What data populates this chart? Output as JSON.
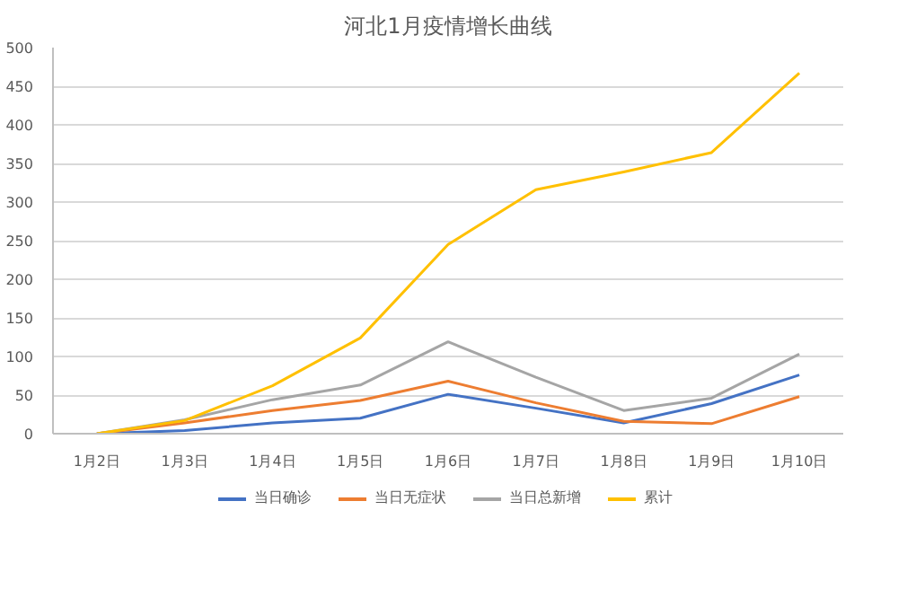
{
  "chart_data": {
    "type": "line",
    "title": "河北1月疫情增长曲线",
    "categories": [
      "1月2日",
      "1月3日",
      "1月4日",
      "1月5日",
      "1月6日",
      "1月7日",
      "1月8日",
      "1月9日",
      "1月10日"
    ],
    "series": [
      {
        "name": "当日确诊",
        "color": "#4472c4",
        "values": [
          0,
          4,
          14,
          20,
          51,
          33,
          14,
          39,
          76
        ]
      },
      {
        "name": "当日无症状",
        "color": "#ed7d31",
        "values": [
          0,
          14,
          30,
          43,
          68,
          40,
          16,
          13,
          48
        ]
      },
      {
        "name": "当日总新增",
        "color": "#a5a5a5",
        "values": [
          0,
          18,
          44,
          63,
          119,
          73,
          30,
          46,
          103
        ]
      },
      {
        "name": "累计",
        "color": "#ffc000",
        "values": [
          0,
          17,
          62,
          124,
          245,
          316,
          339,
          364,
          467
        ]
      }
    ],
    "ylim": [
      0,
      500
    ],
    "yticks": [
      0,
      50,
      100,
      150,
      200,
      250,
      300,
      350,
      400,
      450,
      500
    ],
    "grid": "y",
    "legend": "bottom"
  }
}
